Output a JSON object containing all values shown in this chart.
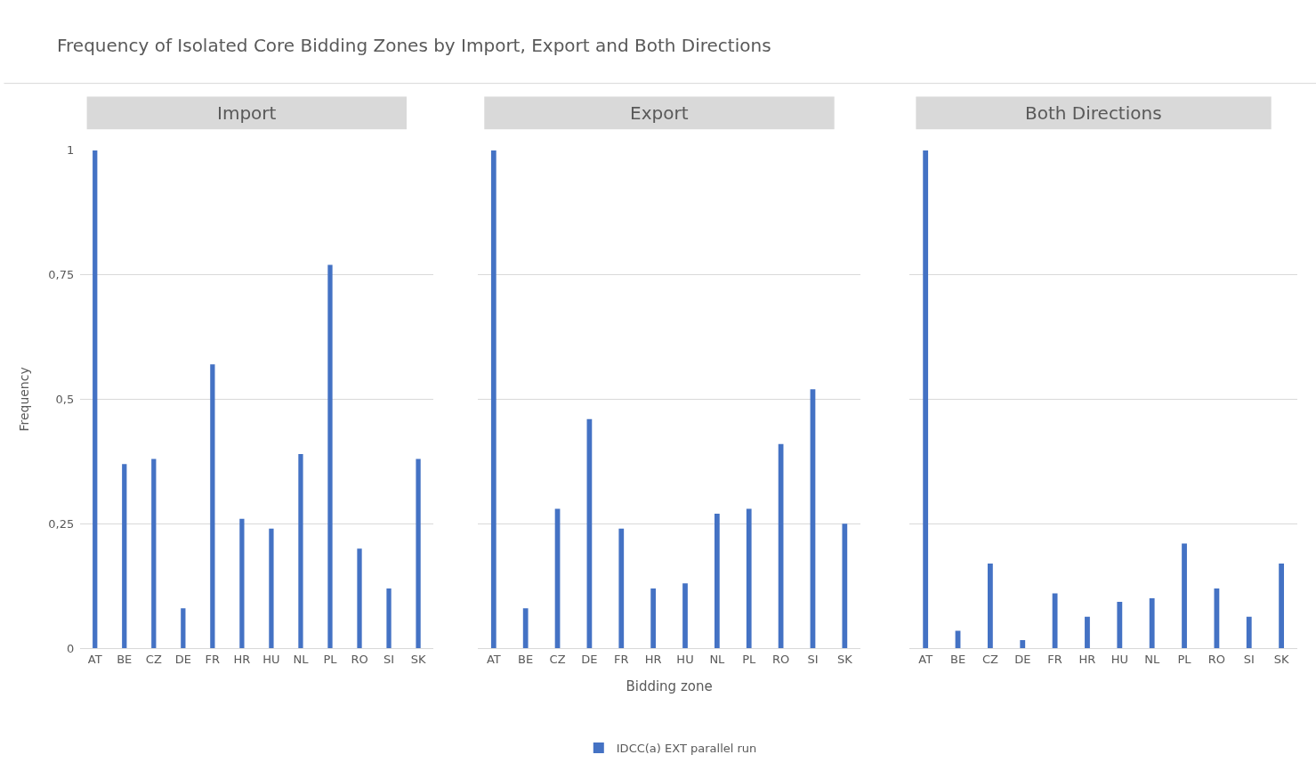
{
  "chart_data": [
    {
      "type": "bar",
      "title": "Import",
      "annotations": [
        "Frequency of Isolated Core Bidding Zones by Import, Export and Both Directions"
      ],
      "ylabel": "Frequency",
      "categories": [
        "AT",
        "BE",
        "CZ",
        "DE",
        "FR",
        "HR",
        "HU",
        "NL",
        "PL",
        "RO",
        "SI",
        "SK"
      ],
      "series": [
        {
          "name": "IDCC(a) EXT parallel run",
          "color": "#4472c4",
          "values": [
            1,
            0.37,
            0.38,
            0.08,
            0.57,
            0.26,
            0.24,
            0.39,
            0.77,
            0.2,
            0.12,
            0.38
          ]
        }
      ],
      "ylim": [
        0,
        1
      ],
      "yticks": [
        0,
        {
          "value": 0.25,
          "label": "0,25"
        },
        {
          "value": 0.5,
          "label": "0,5"
        },
        {
          "value": 0.75,
          "label": "0,75"
        },
        1
      ],
      "grid": "y",
      "legend": "bottom"
    },
    {
      "type": "bar",
      "title": "Export",
      "xlabel": "Bidding zone",
      "categories": [
        "AT",
        "BE",
        "CZ",
        "DE",
        "FR",
        "HR",
        "HU",
        "NL",
        "PL",
        "RO",
        "SI",
        "SK"
      ],
      "series": [
        {
          "color": "#4472c4",
          "values": [
            1,
            0.08,
            0.28,
            0.46,
            0.24,
            0.12,
            0.13,
            0.27,
            0.28,
            0.41,
            0.52,
            0.25
          ]
        }
      ],
      "ylim": [
        0,
        1
      ],
      "yticks": [
        {
          "value": 0,
          "label": null
        },
        {
          "value": 0.25,
          "label": null
        },
        {
          "value": 0.5,
          "label": null
        },
        {
          "value": 0.75,
          "label": null
        },
        {
          "value": 1,
          "label": null
        }
      ],
      "grid": "y",
      "tick_labels": "x"
    },
    {
      "type": "bar",
      "title": "Both Directions",
      "categories": [
        "AT",
        "BE",
        "CZ",
        "DE",
        "FR",
        "HR",
        "HU",
        "NL",
        "PL",
        "RO",
        "SI",
        "SK"
      ],
      "series": [
        {
          "color": "#4472c4",
          "values": [
            1,
            0.035,
            0.17,
            0.016,
            0.11,
            0.063,
            0.093,
            0.1,
            0.21,
            0.12,
            0.063,
            0.17
          ]
        }
      ],
      "ylim": [
        0,
        1
      ],
      "yticks": [
        {
          "value": 0,
          "label": null
        },
        {
          "value": 0.25,
          "label": null
        },
        {
          "value": 0.5,
          "label": null
        },
        {
          "value": 0.75,
          "label": null
        },
        {
          "value": 1,
          "label": null
        }
      ],
      "grid": "y",
      "tick_labels": "x"
    }
  ]
}
